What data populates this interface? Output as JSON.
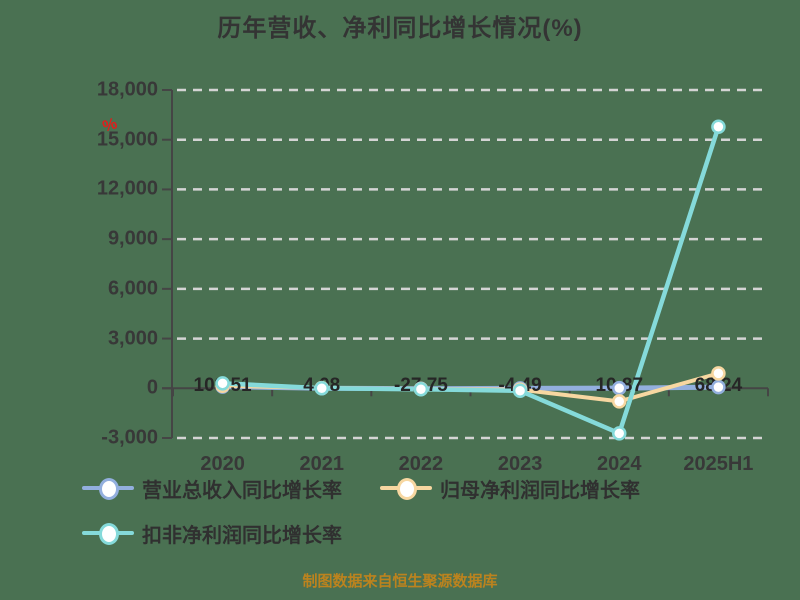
{
  "title": "历年营收、净利同比增长情况(%)",
  "watermark_glyph": "%",
  "source_note": "制图数据来自恒生聚源数据库",
  "colors": {
    "background": "#4A7152",
    "title_text": "#343434",
    "axis_line": "#454545",
    "grid_line": "#D4D4D4",
    "tick_text": "#383838",
    "data_label_text": "#262626",
    "legend_text": "#303030",
    "source_text": "#BC831E",
    "watermark_red": "#E11D1B",
    "marker_fill": "#FFFFFF"
  },
  "chart_data": {
    "type": "line",
    "title": "历年营收、净利同比增长情况(%)",
    "xlabel": "",
    "ylabel": "",
    "categories": [
      "2020",
      "2021",
      "2022",
      "2023",
      "2024",
      "2025H1"
    ],
    "ylim": [
      -3000,
      18000
    ],
    "grid": "horizontal dashed",
    "legend_position": "bottom-left two rows",
    "y_ticks": [
      {
        "value": 18000,
        "label": "18,000"
      },
      {
        "value": 15000,
        "label": "15,000"
      },
      {
        "value": 12000,
        "label": "12,000"
      },
      {
        "value": 9000,
        "label": "9,000"
      },
      {
        "value": 6000,
        "label": "6,000"
      },
      {
        "value": 3000,
        "label": "3,000"
      },
      {
        "value": 0,
        "label": "0"
      },
      {
        "value": -3000,
        "label": "-3,000"
      }
    ],
    "data_labels": [
      "103.51",
      "4.08",
      "-27.75",
      "-4.49",
      "10.87",
      "68.24"
    ],
    "series": [
      {
        "name": "营业总收入同比增长率",
        "color": "#93AFDE",
        "line_width": 5,
        "values": [
          103.51,
          4.08,
          -27.75,
          -4.49,
          10.87,
          68.24
        ],
        "values_estimated": false
      },
      {
        "name": "归母净利润同比增长率",
        "color": "#F7D7A1",
        "line_width": 4,
        "values": [
          150,
          20,
          -40,
          -80,
          -790,
          900
        ],
        "values_estimated": true
      },
      {
        "name": "扣非净利润同比增长率",
        "color": "#85DADA",
        "line_width": 4.5,
        "values": [
          300,
          0,
          -60,
          -150,
          -2720,
          15780
        ],
        "values_estimated": true
      }
    ]
  }
}
